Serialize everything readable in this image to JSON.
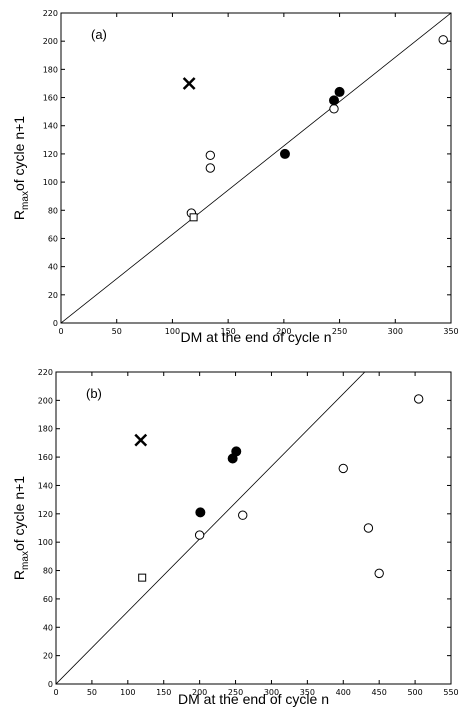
{
  "chart_data": [
    {
      "type": "scatter",
      "panel_label": "(a)",
      "xlabel": "DM at the end of cycle n",
      "ylabel_main": "R",
      "ylabel_sub": "max",
      "ylabel_rest": "of cycle n+1",
      "xlim": [
        0,
        350
      ],
      "ylim": [
        0,
        220
      ],
      "xticks": [
        "0",
        "50",
        "100",
        "150",
        "200",
        "250",
        "300",
        "350"
      ],
      "yticks": [
        "0",
        "20",
        "40",
        "60",
        "80",
        "100",
        "120",
        "140",
        "160",
        "180",
        "200",
        "220"
      ],
      "grid": false,
      "series": [
        {
          "marker": "open-circle",
          "points": [
            [
              117,
              78
            ],
            [
              134,
              119
            ],
            [
              134,
              110
            ],
            [
              245,
              152
            ],
            [
              343,
              201
            ]
          ]
        },
        {
          "marker": "filled-circle",
          "points": [
            [
              201,
              120
            ],
            [
              245,
              158
            ],
            [
              250,
              164
            ]
          ]
        },
        {
          "marker": "open-square",
          "points": [
            [
              119,
              75
            ]
          ]
        },
        {
          "marker": "x",
          "points": [
            [
              115,
              170
            ]
          ]
        }
      ],
      "reference_line": [
        [
          0,
          0
        ],
        [
          350,
          220
        ]
      ]
    },
    {
      "type": "scatter",
      "panel_label": "(b)",
      "xlabel": "DM at the end of cycle n",
      "ylabel_main": "R",
      "ylabel_sub": "max",
      "ylabel_rest": "of cycle n+1",
      "xlim": [
        0,
        550
      ],
      "ylim": [
        0,
        220
      ],
      "xticks": [
        "0",
        "50",
        "100",
        "150",
        "200",
        "250",
        "300",
        "350",
        "400",
        "450",
        "500",
        "550"
      ],
      "yticks": [
        "0",
        "20",
        "40",
        "60",
        "80",
        "100",
        "120",
        "140",
        "160",
        "180",
        "200",
        "220"
      ],
      "grid": false,
      "series": [
        {
          "marker": "open-circle",
          "points": [
            [
              200,
              105
            ],
            [
              260,
              119
            ],
            [
              400,
              152
            ],
            [
              435,
              110
            ],
            [
              450,
              78
            ],
            [
              505,
              201
            ]
          ]
        },
        {
          "marker": "filled-circle",
          "points": [
            [
              201,
              121
            ],
            [
              246,
              159
            ],
            [
              251,
              164
            ]
          ]
        },
        {
          "marker": "open-square",
          "points": [
            [
              120,
              75
            ]
          ]
        },
        {
          "marker": "x",
          "points": [
            [
              118,
              172
            ]
          ]
        }
      ],
      "reference_line": [
        [
          0,
          0
        ],
        [
          430,
          220
        ]
      ]
    }
  ]
}
